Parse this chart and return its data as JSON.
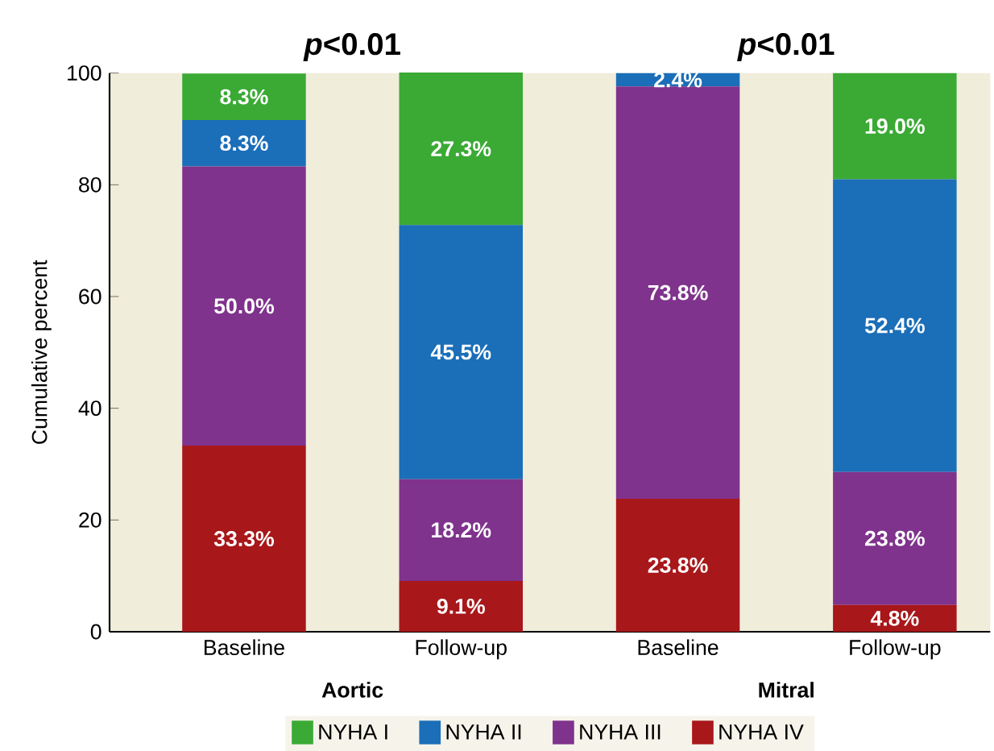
{
  "chart_data": {
    "type": "bar",
    "stacked": true,
    "categories": [
      "Baseline",
      "Follow-up",
      "Baseline",
      "Follow-up"
    ],
    "ylabel": "Cumulative percent",
    "ylim": [
      0,
      100
    ],
    "yticks": [
      0,
      20,
      40,
      60,
      80,
      100
    ],
    "series": [
      {
        "name": "NYHA IV",
        "color": "#a8171a",
        "values": [
          33.3,
          9.1,
          23.8,
          4.8
        ],
        "value_labels": [
          "33.3%",
          "9.1%",
          "23.8%",
          "4.8%"
        ]
      },
      {
        "name": "NYHA III",
        "color": "#7f338c",
        "values": [
          50.0,
          18.2,
          73.8,
          23.8
        ],
        "value_labels": [
          "50.0%",
          "18.2%",
          "73.8%",
          "23.8%"
        ]
      },
      {
        "name": "NYHA II",
        "color": "#1b6eb8",
        "values": [
          8.3,
          45.5,
          2.4,
          52.4
        ],
        "value_labels": [
          "8.3%",
          "45.5%",
          "2.4%",
          "52.4%"
        ]
      },
      {
        "name": "NYHA I",
        "color": "#3aaa35",
        "values": [
          8.3,
          27.3,
          null,
          19.0
        ],
        "value_labels": [
          "8.3%",
          "27.3%",
          null,
          "19.0%"
        ]
      }
    ],
    "annotations": [
      "*p*<0.01",
      "*p*<0.01",
      "Aortic",
      "Mitral"
    ],
    "legend": "bottom",
    "grid": false
  }
}
